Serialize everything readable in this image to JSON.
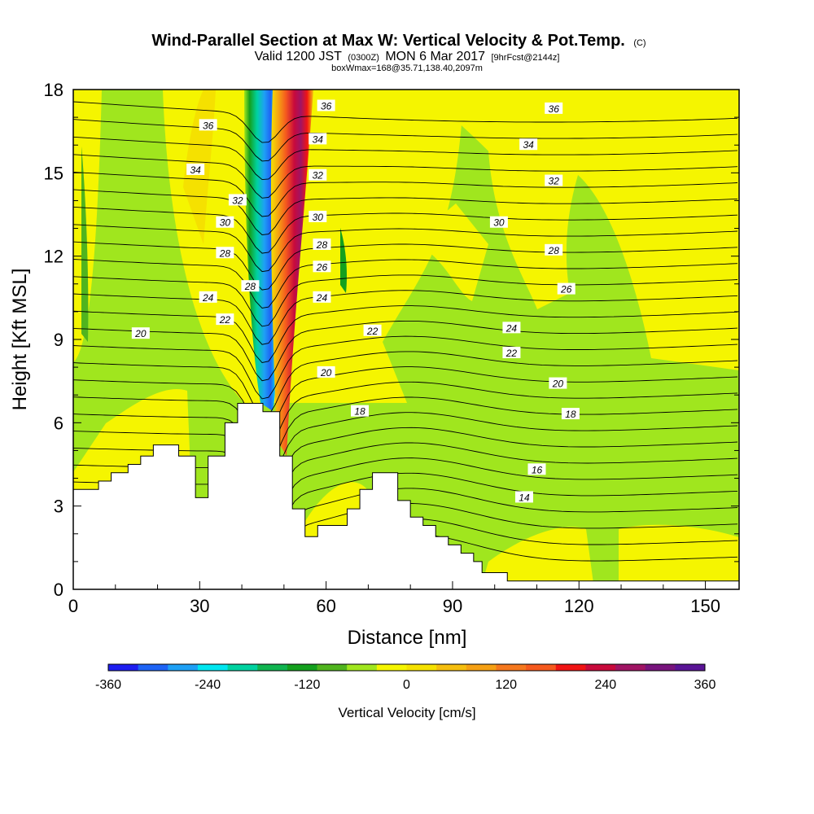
{
  "chart_data": {
    "type": "heatmap",
    "title": "Wind-Parallel Section at Max W: Vertical Velocity & Pot.Temp.",
    "title_suffix": "(C)",
    "subtitle_a": "Valid 1200 JST",
    "subtitle_b": "(0300Z)",
    "subtitle_c": "MON 6 Mar 2017",
    "subtitle_d": "[9hrFcst@2144z]",
    "subtitle_e": "boxWmax=168@35.71,138.40,2097m",
    "xlabel": "Distance [nm]",
    "ylabel": "Height [Kft MSL]",
    "xlim": [
      0,
      158
    ],
    "ylim": [
      0,
      18
    ],
    "x_ticks": [
      0,
      30,
      60,
      90,
      120,
      150
    ],
    "y_ticks": [
      0,
      3,
      6,
      9,
      12,
      15,
      18
    ],
    "colorbar": {
      "title": "Vertical Velocity [cm/s]",
      "tick_labels": [
        "-360",
        "-240",
        "-120",
        "0",
        "120",
        "240",
        "360"
      ],
      "colors": [
        "#1e1ef0",
        "#1e64f5",
        "#1ea0f5",
        "#00e6f0",
        "#00d2a0",
        "#10b450",
        "#14a01e",
        "#50b41e",
        "#a0e61e",
        "#f5f500",
        "#f5e100",
        "#f5be0f",
        "#f5a014",
        "#f5781e",
        "#f55a1e",
        "#f01414",
        "#c80a3c",
        "#a01464",
        "#78147d",
        "#5a1496"
      ]
    },
    "contour_labels": [
      {
        "text": "36",
        "x": 32,
        "y": 16.7
      },
      {
        "text": "34",
        "x": 29,
        "y": 15.1
      },
      {
        "text": "32",
        "x": 39,
        "y": 14.0
      },
      {
        "text": "30",
        "x": 36,
        "y": 13.2
      },
      {
        "text": "28",
        "x": 36,
        "y": 12.1
      },
      {
        "text": "28",
        "x": 42,
        "y": 10.9
      },
      {
        "text": "24",
        "x": 32,
        "y": 10.5
      },
      {
        "text": "22",
        "x": 36,
        "y": 9.7
      },
      {
        "text": "20",
        "x": 16,
        "y": 9.2
      },
      {
        "text": "36",
        "x": 60,
        "y": 17.4
      },
      {
        "text": "34",
        "x": 58,
        "y": 16.2
      },
      {
        "text": "32",
        "x": 58,
        "y": 14.9
      },
      {
        "text": "30",
        "x": 58,
        "y": 13.4
      },
      {
        "text": "28",
        "x": 59,
        "y": 12.4
      },
      {
        "text": "26",
        "x": 59,
        "y": 11.6
      },
      {
        "text": "24",
        "x": 59,
        "y": 10.5
      },
      {
        "text": "22",
        "x": 71,
        "y": 9.3
      },
      {
        "text": "20",
        "x": 60,
        "y": 7.8
      },
      {
        "text": "18",
        "x": 68,
        "y": 6.4
      },
      {
        "text": "36",
        "x": 114,
        "y": 17.3
      },
      {
        "text": "34",
        "x": 108,
        "y": 16.0
      },
      {
        "text": "32",
        "x": 114,
        "y": 14.7
      },
      {
        "text": "30",
        "x": 101,
        "y": 13.2
      },
      {
        "text": "28",
        "x": 114,
        "y": 12.2
      },
      {
        "text": "26",
        "x": 117,
        "y": 10.8
      },
      {
        "text": "24",
        "x": 104,
        "y": 9.4
      },
      {
        "text": "22",
        "x": 104,
        "y": 8.5
      },
      {
        "text": "20",
        "x": 115,
        "y": 7.4
      },
      {
        "text": "18",
        "x": 118,
        "y": 6.3
      },
      {
        "text": "16",
        "x": 110,
        "y": 4.3
      },
      {
        "text": "14",
        "x": 107,
        "y": 3.3
      }
    ],
    "terrain_profile": [
      [
        0,
        3.6
      ],
      [
        6,
        3.6
      ],
      [
        6,
        3.9
      ],
      [
        9,
        3.9
      ],
      [
        9,
        4.2
      ],
      [
        13,
        4.2
      ],
      [
        13,
        4.5
      ],
      [
        16,
        4.5
      ],
      [
        16,
        4.8
      ],
      [
        19,
        4.8
      ],
      [
        19,
        5.2
      ],
      [
        25,
        5.2
      ],
      [
        25,
        4.8
      ],
      [
        29,
        4.8
      ],
      [
        29,
        3.3
      ],
      [
        32,
        3.3
      ],
      [
        32,
        4.8
      ],
      [
        36,
        4.8
      ],
      [
        36,
        6.0
      ],
      [
        39,
        6.0
      ],
      [
        39,
        6.7
      ],
      [
        42,
        6.7
      ],
      [
        42,
        6.7
      ],
      [
        45,
        6.7
      ],
      [
        45,
        6.4
      ],
      [
        49,
        6.4
      ],
      [
        49,
        4.8
      ],
      [
        52,
        4.8
      ],
      [
        52,
        2.9
      ],
      [
        55,
        2.9
      ],
      [
        55,
        1.9
      ],
      [
        58,
        1.9
      ],
      [
        58,
        2.3
      ],
      [
        62,
        2.3
      ],
      [
        62,
        2.3
      ],
      [
        65,
        2.3
      ],
      [
        65,
        2.9
      ],
      [
        68,
        2.9
      ],
      [
        68,
        3.6
      ],
      [
        71,
        3.6
      ],
      [
        71,
        4.2
      ],
      [
        77,
        4.2
      ],
      [
        77,
        3.2
      ],
      [
        80,
        3.2
      ],
      [
        80,
        2.6
      ],
      [
        83,
        2.6
      ],
      [
        83,
        2.3
      ],
      [
        86,
        2.3
      ],
      [
        86,
        1.9
      ],
      [
        89,
        1.9
      ],
      [
        89,
        1.6
      ],
      [
        92,
        1.6
      ],
      [
        92,
        1.3
      ],
      [
        95,
        1.3
      ],
      [
        95,
        1.0
      ],
      [
        97,
        1.0
      ],
      [
        97,
        0.6
      ],
      [
        103,
        0.6
      ],
      [
        103,
        0.3
      ],
      [
        158,
        0.3
      ]
    ],
    "vertical_velocity_plume": [
      {
        "name": "downdraft",
        "range_cm_s": [
          -360,
          -120
        ]
      },
      {
        "name": "updraft",
        "range_cm_s": [
          120,
          360
        ]
      }
    ],
    "theta_contour_values": [
      14,
      16,
      18,
      20,
      22,
      24,
      26,
      28,
      30,
      32,
      34,
      36
    ]
  }
}
